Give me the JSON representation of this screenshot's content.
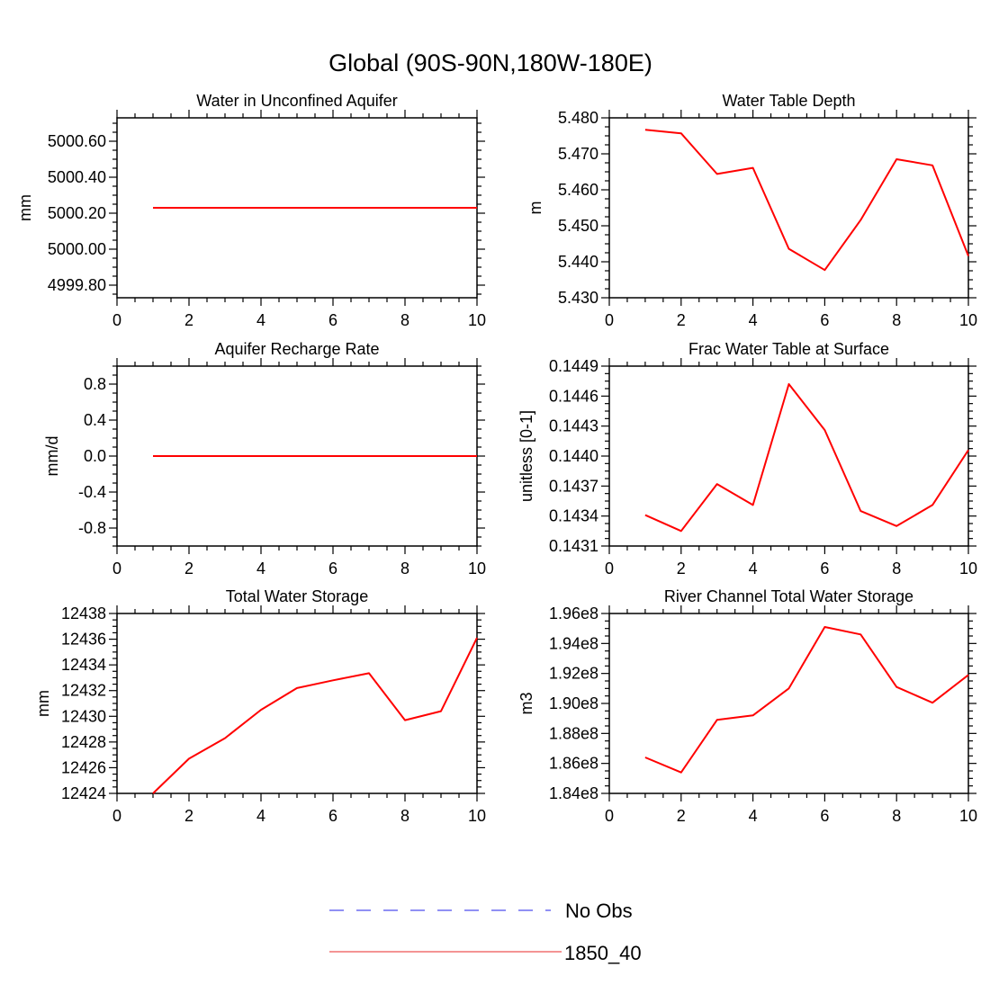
{
  "page_title": "Global (90S-90N,180W-180E)",
  "legend": {
    "items": [
      {
        "label": "No Obs",
        "color": "#6b6bf0",
        "style": "dashed"
      },
      {
        "label": "1850_40",
        "color": "#f07070",
        "style": "solid"
      }
    ]
  },
  "chart_data": [
    {
      "type": "line",
      "title": "Water in Unconfined Aquifer",
      "ylabel": "mm",
      "xlim": [
        0,
        10
      ],
      "ylim": [
        4999.73,
        5000.73
      ],
      "xticks": [
        0,
        2,
        4,
        6,
        8,
        10
      ],
      "xtick_labels": [
        "0",
        "2",
        "4",
        "6",
        "8",
        "10"
      ],
      "yticks": [
        4999.8,
        5000.0,
        5000.2,
        5000.4,
        5000.6
      ],
      "ytick_labels": [
        "4999.80",
        "5000.00",
        "5000.20",
        "5000.40",
        "5000.60"
      ],
      "series": [
        {
          "name": "1850_40",
          "color": "#ff0000",
          "x": [
            1,
            2,
            3,
            4,
            5,
            6,
            7,
            8,
            9,
            10
          ],
          "y": [
            5000.23,
            5000.23,
            5000.23,
            5000.23,
            5000.23,
            5000.23,
            5000.23,
            5000.23,
            5000.23,
            5000.23
          ]
        }
      ]
    },
    {
      "type": "line",
      "title": "Water Table Depth",
      "ylabel": "m",
      "xlim": [
        0,
        10
      ],
      "ylim": [
        5.43,
        5.48
      ],
      "xticks": [
        0,
        2,
        4,
        6,
        8,
        10
      ],
      "xtick_labels": [
        "0",
        "2",
        "4",
        "6",
        "8",
        "10"
      ],
      "yticks": [
        5.43,
        5.44,
        5.45,
        5.46,
        5.47,
        5.48
      ],
      "ytick_labels": [
        "5.430",
        "5.440",
        "5.450",
        "5.460",
        "5.470",
        "5.480"
      ],
      "series": [
        {
          "name": "1850_40",
          "color": "#ff0000",
          "x": [
            1,
            2,
            3,
            4,
            5,
            6,
            7,
            8,
            9,
            10
          ],
          "y": [
            5.4767,
            5.4757,
            5.4644,
            5.4661,
            5.4436,
            5.4377,
            5.4516,
            5.4685,
            5.4668,
            5.4416
          ]
        }
      ]
    },
    {
      "type": "line",
      "title": "Aquifer Recharge Rate",
      "ylabel": "mm/d",
      "xlim": [
        0,
        10
      ],
      "ylim": [
        -1.0,
        1.0
      ],
      "xticks": [
        0,
        2,
        4,
        6,
        8,
        10
      ],
      "xtick_labels": [
        "0",
        "2",
        "4",
        "6",
        "8",
        "10"
      ],
      "yticks": [
        -0.8,
        -0.4,
        0.0,
        0.4,
        0.8
      ],
      "ytick_labels": [
        "-0.8",
        "-0.4",
        "0.0",
        "0.4",
        "0.8"
      ],
      "series": [
        {
          "name": "1850_40",
          "color": "#ff0000",
          "x": [
            1,
            2,
            3,
            4,
            5,
            6,
            7,
            8,
            9,
            10
          ],
          "y": [
            0,
            0,
            0,
            0,
            0,
            0,
            0,
            0,
            0,
            0
          ]
        }
      ]
    },
    {
      "type": "line",
      "title": "Frac Water Table at Surface",
      "ylabel": "unitless [0-1]",
      "xlim": [
        0,
        10
      ],
      "ylim": [
        0.1431,
        0.1449
      ],
      "xticks": [
        0,
        2,
        4,
        6,
        8,
        10
      ],
      "xtick_labels": [
        "0",
        "2",
        "4",
        "6",
        "8",
        "10"
      ],
      "yticks": [
        0.1431,
        0.1434,
        0.1437,
        0.144,
        0.1443,
        0.1446,
        0.1449
      ],
      "ytick_labels": [
        "0.1431",
        "0.1434",
        "0.1437",
        "0.1440",
        "0.1443",
        "0.1446",
        "0.1449"
      ],
      "series": [
        {
          "name": "1850_40",
          "color": "#ff0000",
          "x": [
            1,
            2,
            3,
            4,
            5,
            6,
            7,
            8,
            9,
            10
          ],
          "y": [
            0.14341,
            0.14325,
            0.14372,
            0.14351,
            0.14472,
            0.14426,
            0.14345,
            0.1433,
            0.14351,
            0.14406
          ]
        }
      ]
    },
    {
      "type": "line",
      "title": "Total Water Storage",
      "ylabel": "mm",
      "xlim": [
        0,
        10
      ],
      "ylim": [
        12424,
        12438
      ],
      "xticks": [
        0,
        2,
        4,
        6,
        8,
        10
      ],
      "xtick_labels": [
        "0",
        "2",
        "4",
        "6",
        "8",
        "10"
      ],
      "yticks": [
        12424,
        12426,
        12428,
        12430,
        12432,
        12434,
        12436,
        12438
      ],
      "ytick_labels": [
        "12424",
        "12426",
        "12428",
        "12430",
        "12432",
        "12434",
        "12436",
        "12438"
      ],
      "series": [
        {
          "name": "1850_40",
          "color": "#ff0000",
          "x": [
            1,
            2,
            3,
            4,
            5,
            6,
            7,
            8,
            9,
            10
          ],
          "y": [
            12424.0,
            12426.7,
            12428.3,
            12430.5,
            12432.2,
            12432.8,
            12433.35,
            12429.7,
            12430.4,
            12436.1
          ]
        }
      ]
    },
    {
      "type": "line",
      "title": "River Channel Total Water Storage",
      "ylabel": "m3",
      "xlim": [
        0,
        10
      ],
      "ylim": [
        184000000,
        196000000
      ],
      "xticks": [
        0,
        2,
        4,
        6,
        8,
        10
      ],
      "xtick_labels": [
        "0",
        "2",
        "4",
        "6",
        "8",
        "10"
      ],
      "yticks": [
        184000000,
        186000000,
        188000000,
        190000000,
        192000000,
        194000000,
        196000000
      ],
      "ytick_labels": [
        "1.84e8",
        "1.86e8",
        "1.88e8",
        "1.90e8",
        "1.92e8",
        "1.94e8",
        "1.96e8"
      ],
      "series": [
        {
          "name": "1850_40",
          "color": "#ff0000",
          "x": [
            1,
            2,
            3,
            4,
            5,
            6,
            7,
            8,
            9,
            10
          ],
          "y": [
            186400000,
            185400000,
            188900000,
            189200000,
            191000000,
            195100000,
            194600000,
            191100000,
            190050000,
            191900000
          ]
        }
      ]
    }
  ]
}
